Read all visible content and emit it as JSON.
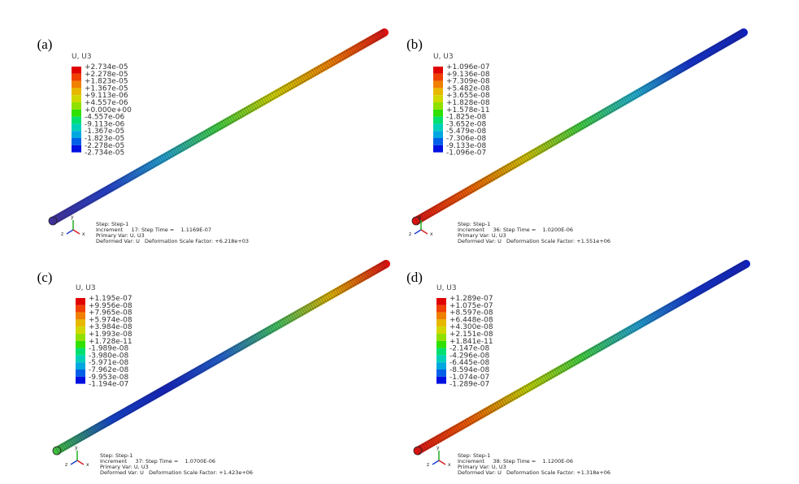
{
  "panels": [
    {
      "label": "(a)",
      "legend_title": "U, U3",
      "legend_values": [
        "+2.734e-05",
        "+2.278e-05",
        "+1.823e-05",
        "+1.367e-05",
        "+9.113e-06",
        "+4.557e-06",
        "+0.000e+00",
        "-4.557e-06",
        "-9.113e-06",
        "-1.367e-05",
        "-1.823e-05",
        "-2.278e-05",
        "-2.734e-05"
      ],
      "info": [
        "Step: Step-1",
        "Increment     17: Step Time =    1.1169E-07",
        "Primary Var: U, U3",
        "Deformed Var: U   Deformation Scale Factor: +6.218e+03"
      ],
      "triad": [
        "y",
        "z",
        "x"
      ]
    },
    {
      "label": "(b)",
      "legend_title": "U, U3",
      "legend_values": [
        "+1.096e-07",
        "+9.136e-08",
        "+7.309e-08",
        "+5.482e-08",
        "+3.655e-08",
        "+1.828e-08",
        "+1.578e-11",
        "-1.825e-08",
        "-3.652e-08",
        "-5.479e-08",
        "-7.306e-08",
        "-9.133e-08",
        "-1.096e-07"
      ],
      "info": [
        "Step: Step-1",
        "Increment     36: Step Time =    1.0200E-06",
        "Primary Var: U, U3",
        "Deformed Var: U   Deformation Scale Factor: +1.551e+06"
      ],
      "triad": [
        "y",
        "z",
        "x"
      ]
    },
    {
      "label": "(c)",
      "legend_title": "U, U3",
      "legend_values": [
        "+1.195e-07",
        "+9.956e-08",
        "+7.965e-08",
        "+5.974e-08",
        "+3.984e-08",
        "+1.993e-08",
        "+1.728e-11",
        "-1.989e-08",
        "-3.980e-08",
        "-5.971e-08",
        "-7.962e-08",
        "-9.953e-08",
        "-1.194e-07"
      ],
      "info": [
        "Step: Step-1",
        "Increment     37: Step Time =    1.0700E-06",
        "Primary Var: U, U3",
        "Deformed Var: U   Deformation Scale Factor: +1.423e+06"
      ],
      "triad": [
        "y",
        "z",
        "x"
      ]
    },
    {
      "label": "(d)",
      "legend_title": "U, U3",
      "legend_values": [
        "+1.289e-07",
        "+1.075e-07",
        "+8.597e-08",
        "+6.448e-08",
        "+4.300e-08",
        "+2.151e-08",
        "+1.841e-11",
        "-2.147e-08",
        "-4.296e-08",
        "-6.445e-08",
        "-8.594e-08",
        "-1.074e-07",
        "-1.289e-07"
      ],
      "info": [
        "Step: Step-1",
        "Increment     38: Step Time =    1.1200E-06",
        "Primary Var: U, U3",
        "Deformed Var: U   Deformation Scale Factor: +1.318e+06"
      ],
      "triad": [
        "y",
        "z",
        "x"
      ]
    }
  ]
}
